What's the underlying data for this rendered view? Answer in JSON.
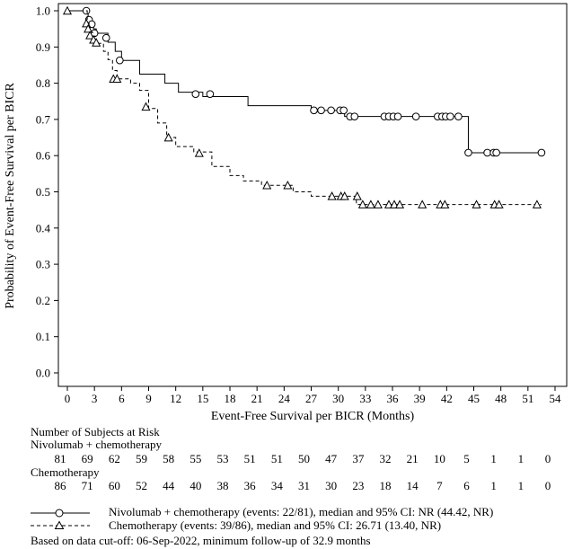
{
  "chart_data": {
    "type": "line",
    "step": true,
    "xlabel": "Event-Free Survival per BICR (Months)",
    "ylabel": "Probability of Event-Free Survival per BICR",
    "xlim": [
      -2,
      55
    ],
    "ylim": [
      0,
      1.0
    ],
    "xticks": [
      0,
      3,
      6,
      9,
      12,
      15,
      18,
      21,
      24,
      27,
      30,
      33,
      36,
      39,
      42,
      45,
      48,
      51,
      54
    ],
    "yticks": [
      "0.0",
      "0.1",
      "0.2",
      "0.3",
      "0.4",
      "0.5",
      "0.6",
      "0.7",
      "0.8",
      "0.9",
      "1.0"
    ],
    "grid": false,
    "series": [
      {
        "marker": "circle",
        "linestyle": "solid",
        "steps": [
          [
            0,
            1.0
          ],
          [
            2.3,
            0.975
          ],
          [
            2.6,
            0.963
          ],
          [
            2.9,
            0.95
          ],
          [
            3.2,
            0.938
          ],
          [
            4.5,
            0.913
          ],
          [
            5.3,
            0.888
          ],
          [
            6.0,
            0.863
          ],
          [
            8.0,
            0.825
          ],
          [
            10.8,
            0.8
          ],
          [
            12.3,
            0.775
          ],
          [
            15.0,
            0.763
          ],
          [
            20.0,
            0.738
          ],
          [
            27.0,
            0.725
          ],
          [
            30.7,
            0.708
          ],
          [
            44.4,
            0.608
          ],
          [
            52.5,
            0.608
          ]
        ],
        "censored": [
          [
            2.1,
            1.0
          ],
          [
            2.4,
            0.975
          ],
          [
            2.7,
            0.963
          ],
          [
            3.0,
            0.938
          ],
          [
            4.3,
            0.925
          ],
          [
            5.8,
            0.863
          ],
          [
            14.2,
            0.77
          ],
          [
            15.8,
            0.77
          ],
          [
            27.3,
            0.725
          ],
          [
            28.1,
            0.725
          ],
          [
            29.2,
            0.725
          ],
          [
            30.2,
            0.725
          ],
          [
            30.6,
            0.725
          ],
          [
            31.3,
            0.708
          ],
          [
            31.8,
            0.708
          ],
          [
            35.1,
            0.708
          ],
          [
            35.6,
            0.708
          ],
          [
            36.1,
            0.708
          ],
          [
            36.6,
            0.708
          ],
          [
            38.6,
            0.708
          ],
          [
            41.0,
            0.708
          ],
          [
            41.5,
            0.708
          ],
          [
            41.9,
            0.708
          ],
          [
            42.4,
            0.708
          ],
          [
            43.3,
            0.708
          ],
          [
            44.4,
            0.608
          ],
          [
            46.5,
            0.608
          ],
          [
            47.2,
            0.608
          ],
          [
            47.5,
            0.608
          ],
          [
            52.5,
            0.608
          ]
        ]
      },
      {
        "marker": "triangle",
        "linestyle": "dashed",
        "steps": [
          [
            0,
            1.0
          ],
          [
            2.2,
            0.965
          ],
          [
            2.5,
            0.94
          ],
          [
            2.8,
            0.93
          ],
          [
            3.2,
            0.91
          ],
          [
            4.0,
            0.888
          ],
          [
            4.5,
            0.865
          ],
          [
            5.0,
            0.835
          ],
          [
            5.5,
            0.812
          ],
          [
            7.0,
            0.8
          ],
          [
            8.0,
            0.78
          ],
          [
            9.0,
            0.73
          ],
          [
            10.0,
            0.69
          ],
          [
            11.0,
            0.65
          ],
          [
            12.0,
            0.625
          ],
          [
            14.0,
            0.61
          ],
          [
            16.0,
            0.57
          ],
          [
            18.0,
            0.545
          ],
          [
            19.5,
            0.53
          ],
          [
            21.5,
            0.518
          ],
          [
            25.0,
            0.5
          ],
          [
            27.0,
            0.488
          ],
          [
            32.0,
            0.465
          ],
          [
            52.5,
            0.465
          ]
        ],
        "censored": [
          [
            0,
            1.0
          ],
          [
            2.1,
            0.965
          ],
          [
            2.3,
            0.95
          ],
          [
            2.5,
            0.932
          ],
          [
            2.9,
            0.92
          ],
          [
            3.2,
            0.912
          ],
          [
            5.1,
            0.812
          ],
          [
            5.5,
            0.812
          ],
          [
            8.7,
            0.735
          ],
          [
            11.2,
            0.65
          ],
          [
            14.6,
            0.607
          ],
          [
            22.1,
            0.518
          ],
          [
            24.4,
            0.518
          ],
          [
            29.3,
            0.488
          ],
          [
            30.3,
            0.488
          ],
          [
            30.7,
            0.488
          ],
          [
            32.1,
            0.488
          ],
          [
            32.7,
            0.465
          ],
          [
            33.6,
            0.465
          ],
          [
            34.4,
            0.465
          ],
          [
            35.6,
            0.465
          ],
          [
            36.2,
            0.465
          ],
          [
            36.8,
            0.465
          ],
          [
            39.3,
            0.465
          ],
          [
            41.3,
            0.465
          ],
          [
            41.8,
            0.465
          ],
          [
            45.3,
            0.465
          ],
          [
            47.3,
            0.465
          ],
          [
            47.8,
            0.465
          ],
          [
            52.0,
            0.465
          ]
        ]
      }
    ]
  },
  "risk_table": {
    "title": "Number of Subjects at Risk",
    "times": [
      0,
      3,
      6,
      9,
      12,
      15,
      18,
      21,
      24,
      27,
      30,
      33,
      36,
      39,
      42,
      45,
      48,
      51,
      54
    ],
    "groups": [
      {
        "label": "Nivolumab + chemotherapy",
        "counts": [
          "81",
          "69",
          "62",
          "59",
          "58",
          "55",
          "53",
          "51",
          "51",
          "50",
          "47",
          "37",
          "32",
          "21",
          "10",
          "5",
          "1",
          "1",
          "0"
        ]
      },
      {
        "label": "Chemotherapy",
        "counts": [
          "86",
          "71",
          "60",
          "52",
          "44",
          "40",
          "38",
          "36",
          "34",
          "31",
          "30",
          "23",
          "18",
          "14",
          "7",
          "6",
          "1",
          "1",
          "0"
        ]
      }
    ]
  },
  "legend": {
    "items": [
      {
        "symbol": "circle",
        "line": "solid",
        "text": "Nivolumab + chemotherapy (events: 22/81), median and 95% CI: NR (44.42, NR)"
      },
      {
        "symbol": "triangle",
        "line": "dashed",
        "text": "Chemotherapy (events: 39/86), median and 95% CI: 26.71 (13.40, NR)"
      }
    ]
  },
  "footnote": "Based on data cut-off: 06-Sep-2022, minimum follow-up of 32.9 months"
}
